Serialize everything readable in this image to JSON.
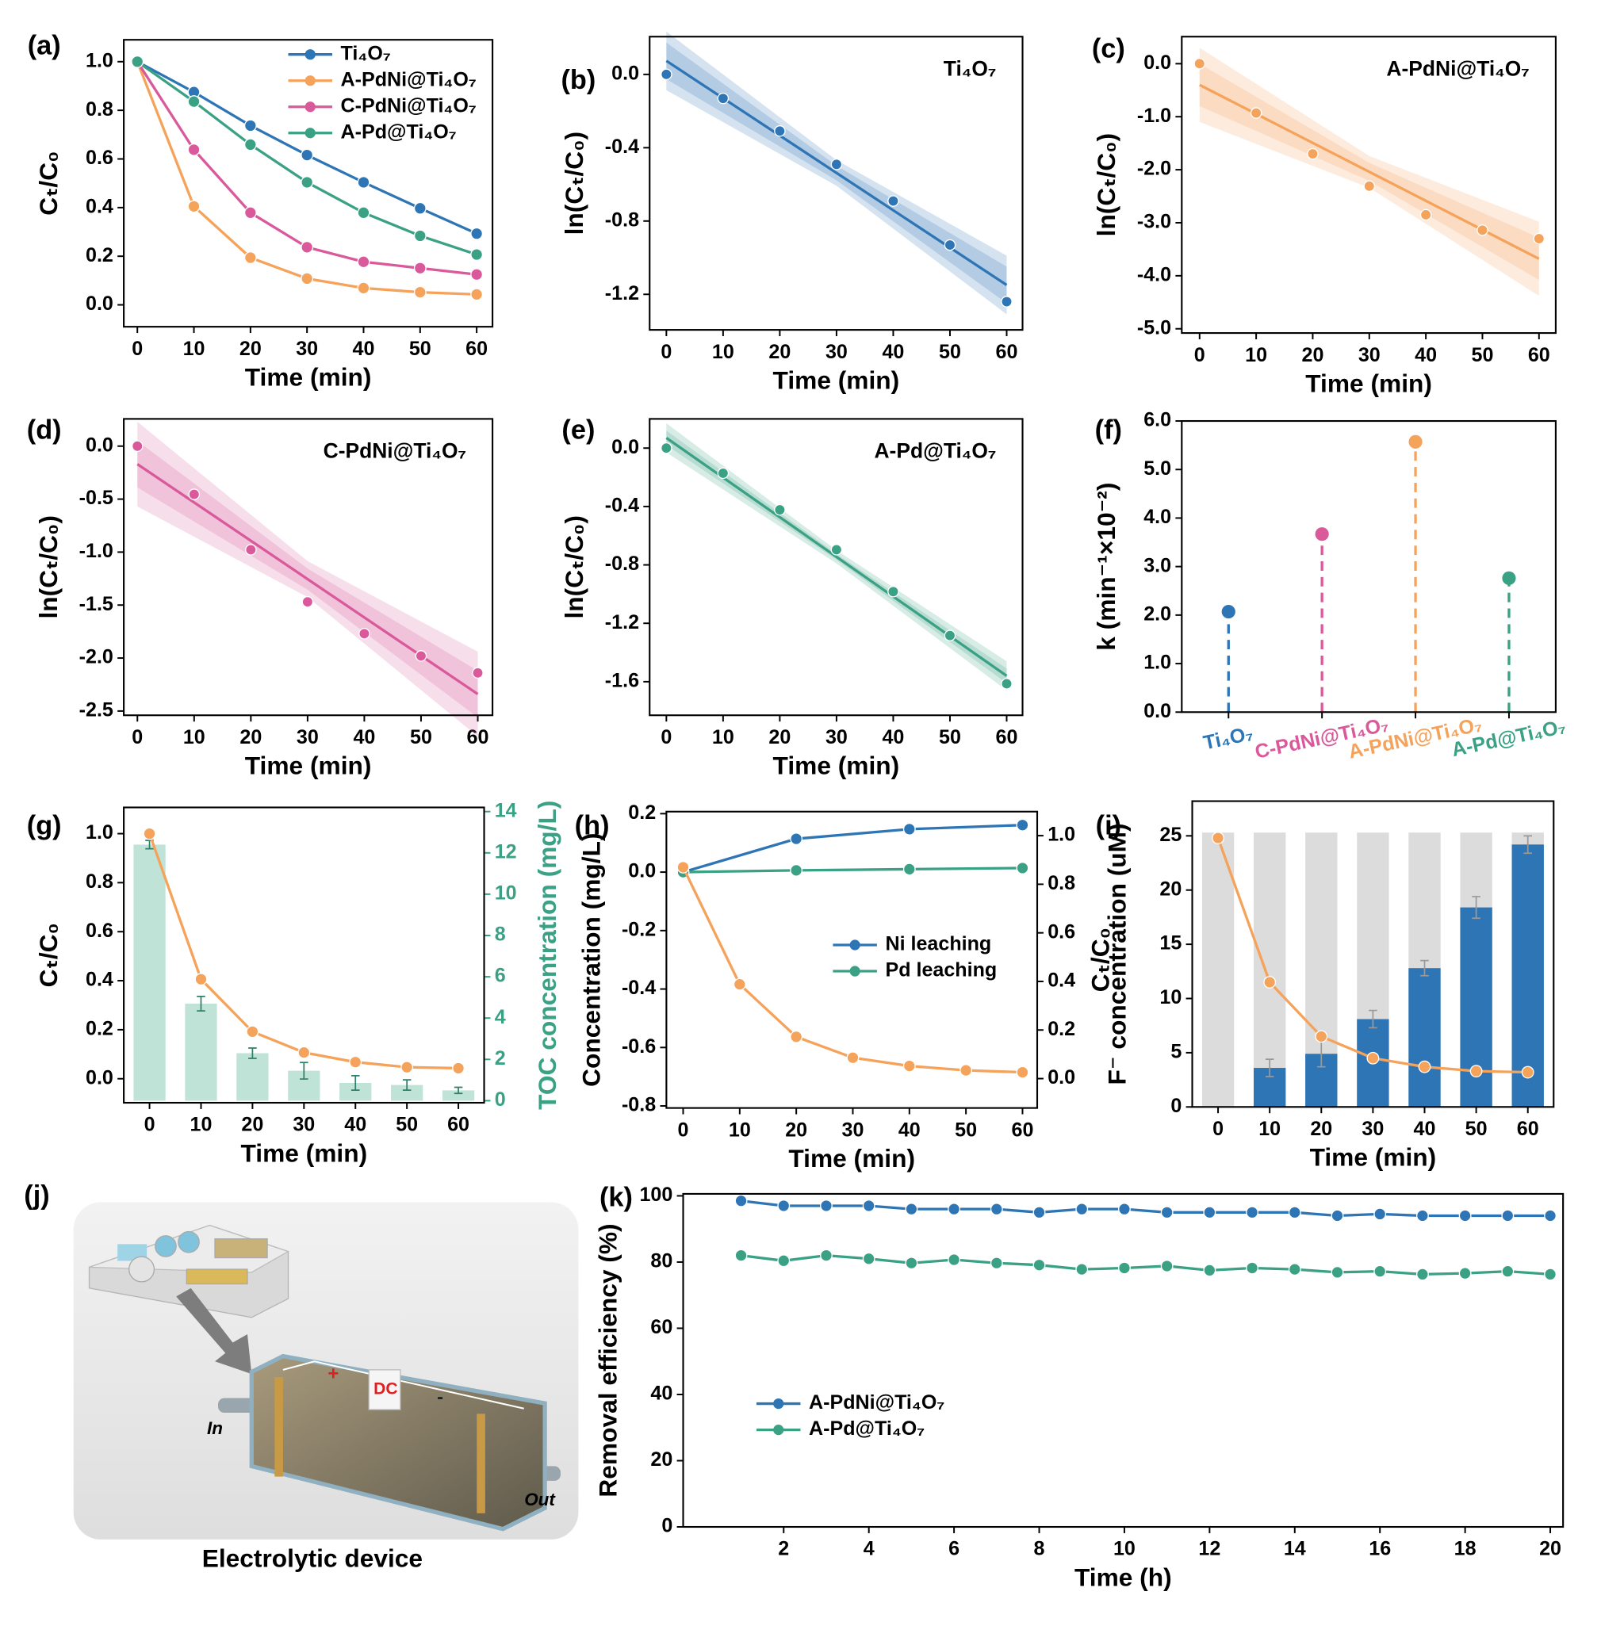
{
  "chart_data": [
    {
      "type": "line",
      "label": "(a)",
      "xlabel": "Time (min)",
      "ylabel": "Cₜ/C₀",
      "x": [
        0,
        10,
        20,
        30,
        40,
        50,
        60
      ],
      "xlim": [
        -2.4,
        62.8
      ],
      "ylim": [
        -0.09,
        1.09
      ],
      "xticks": [
        0,
        10,
        20,
        30,
        40,
        50,
        60
      ],
      "yticks": [
        {
          "value": 0,
          "label": "0.0"
        },
        0.2,
        0.4,
        0.6,
        0.8,
        {
          "value": 1,
          "label": "1.0"
        }
      ],
      "legend": "upper right",
      "series": [
        {
          "name": "Ti₄O₇",
          "color": "#2e75b6",
          "values": [
            1.0,
            0.875,
            0.737,
            0.616,
            0.504,
            0.397,
            0.293
          ]
        },
        {
          "name": "A-PdNi@Ti₄O₇",
          "color": "#f5a25a",
          "values": [
            1.0,
            0.405,
            0.194,
            0.108,
            0.069,
            0.052,
            0.043
          ]
        },
        {
          "name": "C-PdNi@Ti₄O₇",
          "color": "#d9599b",
          "values": [
            1.0,
            0.638,
            0.379,
            0.237,
            0.177,
            0.151,
            0.125
          ]
        },
        {
          "name": "A-Pd@Ti₄O₇",
          "color": "#3aa184",
          "values": [
            1.0,
            0.836,
            0.659,
            0.504,
            0.379,
            0.284,
            0.207
          ]
        }
      ]
    },
    {
      "type": "line",
      "label": "(b)",
      "xlabel": "Time (min)",
      "ylabel": "ln(Cₜ/C₀)",
      "annotation": "Ti₄O₇",
      "x": [
        0,
        10,
        20,
        30,
        40,
        50,
        60
      ],
      "xlim": [
        -2.95,
        62.8
      ],
      "ylim": [
        -1.394,
        0.206
      ],
      "xticks": [
        0,
        10,
        20,
        30,
        40,
        50,
        60
      ],
      "yticks": [
        {
          "value": 0,
          "label": "0.0"
        },
        -0.4,
        -0.8,
        -1.2
      ],
      "color": "#2e75b6",
      "values": [
        0.0,
        -0.131,
        -0.309,
        -0.491,
        -0.691,
        -0.931,
        -1.24
      ],
      "fit": {
        "x": [
          0,
          60
        ],
        "values": [
          0.074,
          -1.149
        ]
      },
      "band_x": [
        0,
        30,
        60
      ],
      "bands": [
        {
          "upper": [
            0.234,
            -0.468,
            -0.989
          ],
          "lower": [
            -0.086,
            -0.608,
            -1.309
          ]
        },
        {
          "upper": [
            0.174,
            -0.498,
            -1.049
          ],
          "lower": [
            -0.026,
            -0.578,
            -1.249
          ]
        }
      ]
    },
    {
      "type": "line",
      "label": "(c)",
      "xlabel": "Time (min)",
      "ylabel": "ln(Cₜ/C₀)",
      "annotation": "A-PdNi@Ti₄O₇",
      "x": [
        0,
        10,
        20,
        30,
        40,
        50,
        60
      ],
      "xlim": [
        -3.15,
        62.96
      ],
      "ylim": [
        -5.08,
        0.51
      ],
      "xticks": [
        0,
        10,
        20,
        30,
        40,
        50,
        60
      ],
      "yticks": [
        {
          "value": 0,
          "label": "0.0"
        },
        {
          "value": -1,
          "label": "-1.0"
        },
        {
          "value": -2,
          "label": "-2.0"
        },
        {
          "value": -3,
          "label": "-3.0"
        },
        {
          "value": -4,
          "label": "-4.0"
        },
        {
          "value": -5,
          "label": "-5.0"
        }
      ],
      "color": "#f5a25a",
      "values": [
        0.0,
        -0.93,
        -1.7,
        -2.31,
        -2.85,
        -3.14,
        -3.3
      ],
      "fit": {
        "x": [
          0,
          60
        ],
        "values": [
          -0.4,
          -3.68
        ]
      },
      "band_x": [
        0,
        30,
        60
      ],
      "bands": [
        {
          "upper": [
            0.3,
            -1.74,
            -2.98
          ],
          "lower": [
            -1.1,
            -2.34,
            -4.38
          ]
        },
        {
          "upper": [
            0.0,
            -1.87,
            -3.28
          ],
          "lower": [
            -0.8,
            -2.21,
            -4.08
          ]
        }
      ]
    },
    {
      "type": "line",
      "label": "(d)",
      "xlabel": "Time (min)",
      "ylabel": "ln(Cₜ/C₀)",
      "annotation": "C-PdNi@Ti₄O₇",
      "x": [
        0,
        10,
        20,
        30,
        40,
        50,
        60
      ],
      "xlim": [
        -2.4,
        62.6
      ],
      "ylim": [
        -2.54,
        0.257
      ],
      "xticks": [
        0,
        10,
        20,
        30,
        40,
        50,
        60
      ],
      "yticks": [
        {
          "value": 0,
          "label": "0.0"
        },
        -0.5,
        {
          "value": -1,
          "label": "-1.0"
        },
        -1.5,
        {
          "value": -2,
          "label": "-2.0"
        },
        -2.5
      ],
      "color": "#d9599b",
      "values": [
        0.0,
        -0.455,
        -0.978,
        -1.47,
        -1.77,
        -1.98,
        -2.14
      ],
      "fit": {
        "x": [
          0,
          60
        ],
        "values": [
          -0.17,
          -2.34
        ]
      },
      "band_x": [
        0,
        30,
        60
      ],
      "bands": [
        {
          "upper": [
            0.23,
            -1.085,
            -1.94
          ],
          "lower": [
            -0.57,
            -1.425,
            -2.74
          ]
        },
        {
          "upper": [
            0.05,
            -1.155,
            -2.12
          ],
          "lower": [
            -0.39,
            -1.355,
            -2.56
          ]
        }
      ]
    },
    {
      "type": "line",
      "label": "(e)",
      "xlabel": "Time (min)",
      "ylabel": "ln(Cₜ/C₀)",
      "annotation": "A-Pd@Ti₄O₇",
      "x": [
        0,
        10,
        20,
        30,
        40,
        50,
        60
      ],
      "xlim": [
        -2.95,
        62.8
      ],
      "ylim": [
        -1.83,
        0.2
      ],
      "xticks": [
        0,
        10,
        20,
        30,
        40,
        50,
        60
      ],
      "yticks": [
        {
          "value": 0,
          "label": "0.0"
        },
        -0.4,
        -0.8,
        -1.2,
        -1.6
      ],
      "color": "#3aa184",
      "values": [
        0.0,
        -0.172,
        -0.423,
        -0.696,
        -0.983,
        -1.284,
        -1.614
      ],
      "fit": {
        "x": [
          0,
          60
        ],
        "values": [
          0.07,
          -1.56
        ]
      },
      "band_x": [
        0,
        30,
        60
      ],
      "bands": [
        {
          "upper": [
            0.17,
            -0.7,
            -1.46
          ],
          "lower": [
            -0.03,
            -0.79,
            -1.66
          ]
        },
        {
          "upper": [
            0.12,
            -0.725,
            -1.51
          ],
          "lower": [
            0.02,
            -0.765,
            -1.61
          ]
        }
      ]
    },
    {
      "type": "lollipop",
      "label": "(f)",
      "ylabel": "k (min⁻¹×10⁻²)",
      "categories": [
        "Ti₄O₇",
        "C-PdNi@Ti₄O₇",
        "A-PdNi@Ti₄O₇",
        "A-Pd@Ti₄O₇"
      ],
      "values": [
        2.07,
        3.67,
        5.57,
        2.76
      ],
      "colors": [
        "#2e75b6",
        "#d9599b",
        "#f5a25a",
        "#3aa184"
      ],
      "ylim": [
        0,
        6
      ],
      "yticks": [
        {
          "value": 0,
          "label": "0.0"
        },
        {
          "value": 1,
          "label": "1.0"
        },
        {
          "value": 2,
          "label": "2.0"
        },
        {
          "value": 3,
          "label": "3.0"
        },
        {
          "value": 4,
          "label": "4.0"
        },
        {
          "value": 5,
          "label": "5.0"
        },
        {
          "value": 6,
          "label": "6.0"
        }
      ]
    },
    {
      "type": "combo",
      "label": "(g)",
      "xlabel": "Time (min)",
      "ylabel": "Cₜ/C₀",
      "y2label": "TOC concentration (mg/L)",
      "y2color": "#3aa184",
      "categories": [
        "0",
        "10",
        "20",
        "30",
        "40",
        "50",
        "60"
      ],
      "ylim": [
        -0.098,
        1.107
      ],
      "yticks": [
        {
          "value": 0,
          "label": "0.0"
        },
        0.2,
        0.4,
        0.6,
        0.8,
        {
          "value": 1,
          "label": "1.0"
        }
      ],
      "y2lim": [
        -0.1,
        14.2
      ],
      "y2ticks": [
        0,
        2,
        4,
        6,
        8,
        10,
        12,
        14
      ],
      "series": [
        {
          "type": "bar",
          "axis": "y2",
          "color": "#bfe3d6",
          "values": [
            12.4,
            4.7,
            2.3,
            1.45,
            0.86,
            0.76,
            0.5
          ],
          "errors": [
            0.2,
            0.35,
            0.25,
            0.4,
            0.35,
            0.25,
            0.15
          ]
        },
        {
          "type": "line",
          "color": "#f5a25a",
          "values": [
            1.0,
            0.406,
            0.192,
            0.107,
            0.068,
            0.047,
            0.043
          ]
        }
      ]
    },
    {
      "type": "line",
      "label": "(h)",
      "xlabel": "Time (min)",
      "ylabel": "Concentration (mg/L)",
      "y2label": "Cₜ/C₀",
      "xlim": [
        -2.96,
        62.6
      ],
      "xticks": [
        0,
        10,
        20,
        30,
        40,
        50,
        60
      ],
      "ylim": [
        -0.807,
        0.207
      ],
      "yticks": [
        -0.8,
        -0.6,
        -0.4,
        -0.2,
        {
          "value": 0,
          "label": "0.0"
        },
        0.2
      ],
      "y2lim": [
        -0.121,
        1.099
      ],
      "y2ticks": [
        {
          "value": 0,
          "label": "0.0"
        },
        0.2,
        0.4,
        0.6,
        0.8,
        {
          "value": 1,
          "label": "1.0"
        }
      ],
      "legend": "center right",
      "series": [
        {
          "name": "Ni leaching",
          "color": "#2e75b6",
          "x": [
            0,
            20,
            40,
            60
          ],
          "values": [
            0.0,
            0.114,
            0.147,
            0.161
          ]
        },
        {
          "name": "Pd leaching",
          "color": "#3aa184",
          "x": [
            0,
            20,
            40,
            60
          ],
          "values": [
            0.0,
            0.006,
            0.01,
            0.014
          ]
        },
        {
          "axis": "y2",
          "color": "#f5a25a",
          "x": [
            0,
            10,
            20,
            30,
            40,
            50,
            60
          ],
          "values": [
            0.87,
            0.388,
            0.172,
            0.086,
            0.052,
            0.034,
            0.026
          ]
        }
      ]
    },
    {
      "type": "combo",
      "label": "(i)",
      "xlabel": "Time (min)",
      "ylabel": "F⁻ concentration (uM)",
      "categories": [
        "0",
        "10",
        "20",
        "30",
        "40",
        "50",
        "60"
      ],
      "ylim": [
        0,
        28.2
      ],
      "yticks": [
        0,
        5,
        10,
        15,
        20,
        25
      ],
      "series": [
        {
          "type": "bar",
          "color": "#dcdcdc",
          "values": [
            25.3,
            25.3,
            25.3,
            25.3,
            25.3,
            25.3,
            25.3
          ]
        },
        {
          "type": "bar",
          "color": "#2e75b6",
          "values": [
            null,
            3.6,
            4.9,
            8.1,
            12.8,
            18.4,
            24.2
          ],
          "errors": [
            null,
            0.8,
            1.2,
            0.8,
            0.7,
            1.0,
            0.8
          ]
        },
        {
          "type": "line",
          "color": "#f5a25a",
          "values": [
            24.8,
            11.5,
            6.5,
            4.5,
            3.7,
            3.3,
            3.2
          ]
        }
      ]
    },
    {
      "type": "line",
      "label": "(k)",
      "xlabel": "Time (h)",
      "ylabel": "Removal efficiency (%)",
      "x": [
        1,
        2,
        3,
        4,
        5,
        6,
        7,
        8,
        9,
        10,
        11,
        12,
        13,
        14,
        15,
        16,
        17,
        18,
        19,
        20
      ],
      "xlim": [
        -0.36,
        20.3
      ],
      "xticks": [
        2,
        4,
        6,
        8,
        10,
        12,
        14,
        16,
        18,
        20
      ],
      "ylim": [
        0,
        100.6
      ],
      "yticks": [
        0,
        20,
        40,
        60,
        80,
        100
      ],
      "legend": "center left",
      "series": [
        {
          "name": "A-PdNi@Ti₄O₇",
          "color": "#2e75b6",
          "values": [
            98.5,
            97,
            97,
            97,
            96,
            96,
            96,
            95,
            96,
            96,
            95,
            95,
            95,
            95,
            94,
            94.5,
            94,
            94,
            94,
            94
          ]
        },
        {
          "name": "A-Pd@Ti₄O₇",
          "color": "#3aa184",
          "values": [
            82,
            80.4,
            82,
            81,
            79.7,
            80.7,
            79.7,
            79.1,
            77.8,
            78.2,
            78.8,
            77.5,
            78.2,
            77.8,
            76.9,
            77.2,
            76.3,
            76.6,
            77.2,
            76.3
          ]
        }
      ]
    }
  ],
  "illustration": {
    "label": "(j)",
    "caption": "Electrolytic device",
    "inlet": "In",
    "outlet": "Out",
    "power": "DC",
    "plus": "+",
    "minus": "-"
  }
}
